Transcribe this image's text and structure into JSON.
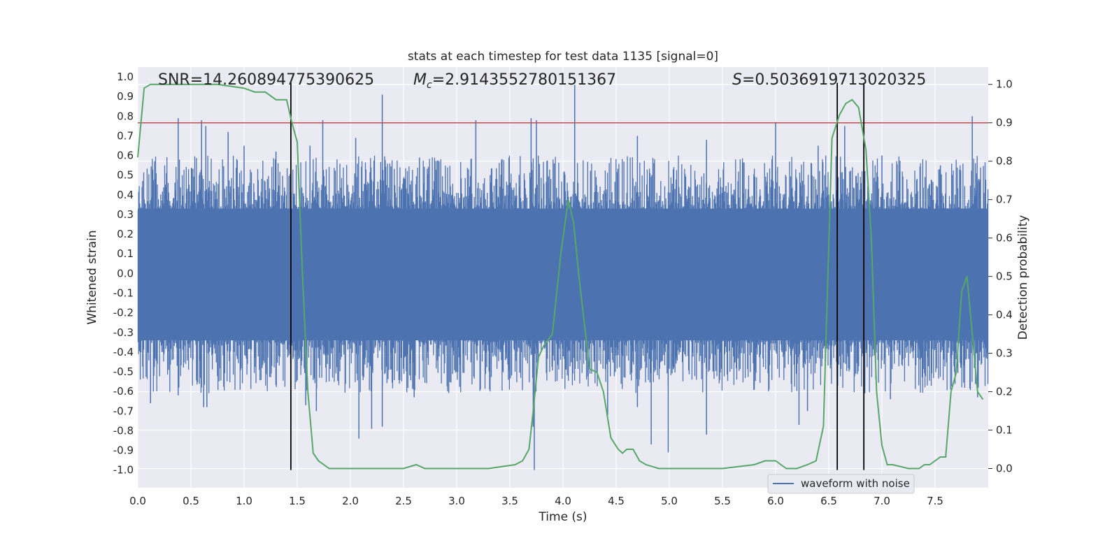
{
  "chart_data": {
    "type": "line",
    "title": "stats at each timestep for test data 1135 [signal=0]",
    "xlabel": "Time (s)",
    "ylabel_left": "Whitened strain",
    "ylabel_right": "Detection probability",
    "xlim": [
      0.0,
      8.0
    ],
    "ylim_left": [
      -1.09,
      1.05
    ],
    "ylim_right": [
      -0.05,
      1.045
    ],
    "x_ticks": [
      "0.0",
      "0.5",
      "1.0",
      "1.5",
      "2.0",
      "2.5",
      "3.0",
      "3.5",
      "4.0",
      "4.5",
      "5.0",
      "5.5",
      "6.0",
      "6.5",
      "7.0",
      "7.5"
    ],
    "x_tick_values": [
      0.0,
      0.5,
      1.0,
      1.5,
      2.0,
      2.5,
      3.0,
      3.5,
      4.0,
      4.5,
      5.0,
      5.5,
      6.0,
      6.5,
      7.0,
      7.5
    ],
    "y_left_ticks": [
      "1.0",
      "0.9",
      "0.8",
      "0.7",
      "0.6",
      "0.5",
      "0.4",
      "0.3",
      "0.2",
      "0.1",
      "0.0",
      "-0.1",
      "-0.2",
      "-0.3",
      "-0.4",
      "-0.5",
      "-0.6",
      "-0.7",
      "-0.8",
      "-0.9",
      "-1.0"
    ],
    "y_left_tick_values": [
      1.0,
      0.9,
      0.8,
      0.7,
      0.6,
      0.5,
      0.4,
      0.3,
      0.2,
      0.1,
      0.0,
      -0.1,
      -0.2,
      -0.3,
      -0.4,
      -0.5,
      -0.6,
      -0.7,
      -0.8,
      -0.9,
      -1.0
    ],
    "y_right_ticks": [
      "1.0",
      "0.9",
      "0.8",
      "0.7",
      "0.6",
      "0.5",
      "0.4",
      "0.3",
      "0.2",
      "0.1",
      "0.0"
    ],
    "y_right_tick_values": [
      1.0,
      0.9,
      0.8,
      0.7,
      0.6,
      0.5,
      0.4,
      0.3,
      0.2,
      0.1,
      0.0
    ],
    "annotations": {
      "snr": "SNR=14.260894775390625",
      "mc_symbol": "M",
      "mc_sub": "c",
      "mc_value": "=2.9143552780151367",
      "s_symbol": "S",
      "s_value": "=0.5036919713020325"
    },
    "legend": {
      "label": "waveform with noise",
      "placement": "lower-right"
    },
    "threshold": {
      "value": 0.9,
      "axis": "right",
      "color": "#c44e52"
    },
    "vlines": [
      1.44,
      6.58,
      6.83
    ],
    "waveform": {
      "name": "waveform with noise",
      "color": "#4c72b0",
      "spikes_up": [
        [
          0.38,
          0.79
        ],
        [
          0.6,
          0.78
        ],
        [
          0.64,
          0.75
        ],
        [
          0.85,
          0.72
        ],
        [
          1.0,
          0.65
        ],
        [
          1.3,
          0.62
        ],
        [
          1.62,
          0.65
        ],
        [
          1.74,
          0.78
        ],
        [
          2.05,
          0.69
        ],
        [
          2.3,
          0.91
        ],
        [
          2.65,
          0.59
        ],
        [
          3.18,
          0.78
        ],
        [
          3.7,
          0.79
        ],
        [
          3.75,
          0.78
        ],
        [
          4.11,
          0.96
        ],
        [
          4.7,
          0.7
        ],
        [
          5.35,
          0.68
        ],
        [
          6.0,
          0.77
        ],
        [
          6.4,
          0.65
        ],
        [
          6.65,
          0.75
        ],
        [
          7.0,
          0.6
        ],
        [
          7.55,
          0.55
        ],
        [
          7.85,
          0.8
        ]
      ],
      "spikes_down": [
        [
          0.12,
          -0.66
        ],
        [
          0.38,
          -0.62
        ],
        [
          0.62,
          -0.68
        ],
        [
          0.65,
          -0.68
        ],
        [
          1.58,
          -0.67
        ],
        [
          1.68,
          -0.7
        ],
        [
          2.08,
          -0.84
        ],
        [
          2.2,
          -0.79
        ],
        [
          2.3,
          -0.78
        ],
        [
          2.6,
          -0.63
        ],
        [
          3.72,
          -0.78
        ],
        [
          3.73,
          -1.0
        ],
        [
          4.42,
          -0.72
        ],
        [
          4.7,
          -0.68
        ],
        [
          4.83,
          -0.87
        ],
        [
          4.99,
          -0.91
        ],
        [
          5.35,
          -0.82
        ],
        [
          6.22,
          -0.77
        ],
        [
          6.3,
          -0.7
        ],
        [
          7.08,
          -0.64
        ],
        [
          7.9,
          -0.63
        ]
      ]
    },
    "probability": {
      "name": "detection probability",
      "color": "#55a868",
      "x": [
        0.0,
        0.06,
        0.12,
        0.25,
        0.5,
        0.75,
        1.0,
        1.1,
        1.15,
        1.2,
        1.25,
        1.3,
        1.4,
        1.45,
        1.5,
        1.55,
        1.6,
        1.65,
        1.7,
        1.8,
        2.0,
        2.3,
        2.5,
        2.62,
        2.7,
        3.0,
        3.3,
        3.55,
        3.62,
        3.68,
        3.72,
        3.77,
        3.82,
        3.9,
        3.98,
        4.05,
        4.1,
        4.15,
        4.25,
        4.32,
        4.38,
        4.45,
        4.52,
        4.56,
        4.6,
        4.66,
        4.72,
        4.78,
        4.9,
        5.0,
        5.5,
        5.8,
        5.9,
        6.0,
        6.05,
        6.1,
        6.2,
        6.3,
        6.38,
        6.45,
        6.53,
        6.6,
        6.66,
        6.72,
        6.78,
        6.85,
        6.9,
        6.95,
        7.0,
        7.05,
        7.1,
        7.25,
        7.3,
        7.35,
        7.4,
        7.45,
        7.5,
        7.55,
        7.6,
        7.65,
        7.7,
        7.75,
        7.8,
        7.85,
        7.9,
        7.95
      ],
      "y": [
        0.81,
        0.99,
        1.0,
        1.0,
        1.0,
        1.0,
        0.99,
        0.98,
        0.98,
        0.98,
        0.97,
        0.96,
        0.96,
        0.9,
        0.85,
        0.5,
        0.2,
        0.04,
        0.02,
        0.0,
        0.0,
        0.0,
        0.0,
        0.01,
        0.0,
        0.0,
        0.0,
        0.01,
        0.02,
        0.05,
        0.15,
        0.29,
        0.32,
        0.35,
        0.56,
        0.7,
        0.64,
        0.5,
        0.26,
        0.25,
        0.2,
        0.08,
        0.05,
        0.04,
        0.05,
        0.05,
        0.02,
        0.01,
        0.0,
        0.0,
        0.0,
        0.01,
        0.02,
        0.02,
        0.01,
        0.0,
        0.0,
        0.01,
        0.02,
        0.11,
        0.86,
        0.92,
        0.95,
        0.96,
        0.94,
        0.83,
        0.6,
        0.2,
        0.06,
        0.01,
        0.01,
        0.0,
        0.0,
        0.0,
        0.01,
        0.01,
        0.02,
        0.03,
        0.03,
        0.2,
        0.25,
        0.46,
        0.5,
        0.35,
        0.2,
        0.18
      ]
    },
    "grid": true
  }
}
